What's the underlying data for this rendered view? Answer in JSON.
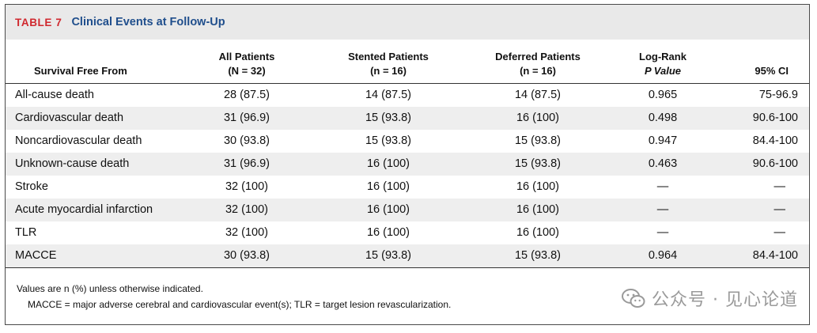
{
  "table": {
    "label": "TABLE 7",
    "title": "Clinical Events at Follow-Up",
    "headers": [
      {
        "l1": "",
        "l2": "Survival Free From"
      },
      {
        "l1": "All Patients",
        "l2": "(N = 32)"
      },
      {
        "l1": "Stented Patients",
        "l2": "(n = 16)"
      },
      {
        "l1": "Deferred Patients",
        "l2": "(n = 16)"
      },
      {
        "l1": "Log-Rank",
        "l2": "P Value"
      },
      {
        "l1": "",
        "l2": "95% CI"
      }
    ],
    "rows": [
      [
        "All-cause death",
        "28 (87.5)",
        "14 (87.5)",
        "14 (87.5)",
        "0.965",
        "75-96.9"
      ],
      [
        "Cardiovascular death",
        "31 (96.9)",
        "15 (93.8)",
        "16 (100)",
        "0.498",
        "90.6-100"
      ],
      [
        "Noncardiovascular death",
        "30 (93.8)",
        "15 (93.8)",
        "15 (93.8)",
        "0.947",
        "84.4-100"
      ],
      [
        "Unknown-cause death",
        "31 (96.9)",
        "16 (100)",
        "15 (93.8)",
        "0.463",
        "90.6-100"
      ],
      [
        "Stroke",
        "32 (100)",
        "16 (100)",
        "16 (100)",
        "—",
        "—"
      ],
      [
        "Acute myocardial infarction",
        "32 (100)",
        "16 (100)",
        "16 (100)",
        "—",
        "—"
      ],
      [
        "TLR",
        "32 (100)",
        "16 (100)",
        "16 (100)",
        "—",
        "—"
      ],
      [
        "MACCE",
        "30 (93.8)",
        "15 (93.8)",
        "15 (93.8)",
        "0.964",
        "84.4-100"
      ]
    ],
    "footnotes": [
      "Values are n (%) unless otherwise indicated.",
      "MACCE = major adverse cerebral and cardiovascular event(s); TLR = target lesion revascularization."
    ]
  },
  "watermark": {
    "text": "公众号 · 见心论道",
    "icon": "wechat-icon"
  },
  "colors": {
    "label": "#d0282e",
    "title": "#1f4e8c",
    "band": "#eeeeee"
  }
}
